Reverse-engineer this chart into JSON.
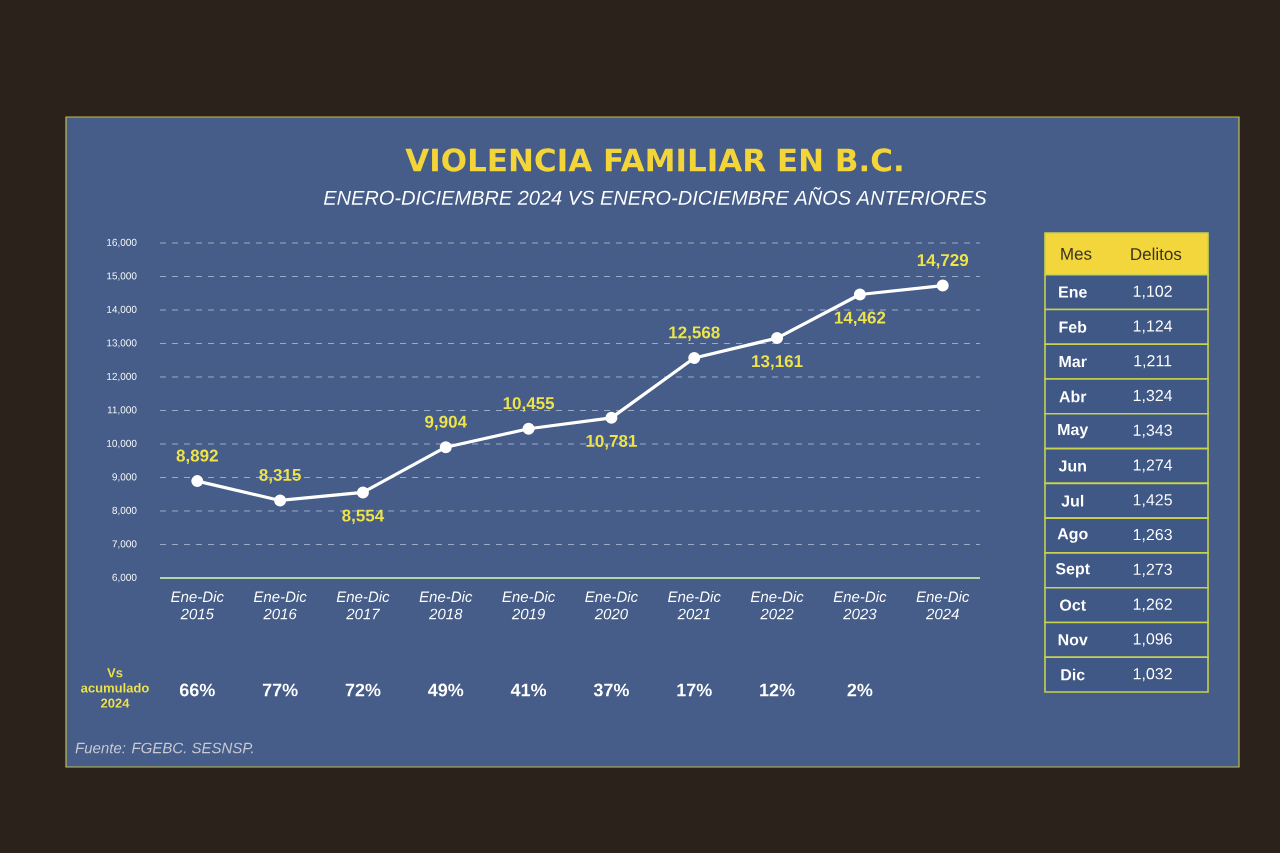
{
  "chart_data": [
    {
      "type": "line",
      "title": "VIOLENCIA FAMILIAR EN B.C.",
      "subtitle": "ENERO-DICIEMBRE 2024 VS ENERO-DICIEMBRE AÑOS ANTERIORES",
      "categories": [
        "Ene-Dic 2015",
        "Ene-Dic 2016",
        "Ene-Dic 2017",
        "Ene-Dic 2018",
        "Ene-Dic 2019",
        "Ene-Dic 2020",
        "Ene-Dic 2021",
        "Ene-Dic 2022",
        "Ene-Dic 2023",
        "Ene-Dic 2024"
      ],
      "values": [
        8892,
        8315,
        8554,
        9904,
        10455,
        10781,
        12568,
        13161,
        14462,
        14729
      ],
      "value_labels": [
        "8,892",
        "8,315",
        "8,554",
        "9,904",
        "10,455",
        "10,781",
        "12,568",
        "13,161",
        "14,462",
        "14,729"
      ],
      "color": "#ffffff",
      "marker": "circle",
      "line_style": "solid",
      "grid": "y",
      "ylim": [
        6000,
        16000
      ],
      "yticks": [
        {
          "value": 6000,
          "label": "6,000"
        },
        {
          "value": 7000,
          "label": "7,000"
        },
        {
          "value": 8000,
          "label": "8,000"
        },
        {
          "value": 9000,
          "label": "9,000"
        },
        {
          "value": 10000,
          "label": "10,000"
        },
        {
          "value": 11000,
          "label": "11,000"
        },
        {
          "value": 12000,
          "label": "12,000"
        },
        {
          "value": 13000,
          "label": "13,000"
        },
        {
          "value": 14000,
          "label": "14,000"
        },
        {
          "value": 15000,
          "label": "15,000"
        },
        {
          "value": 16000,
          "label": "16,000"
        }
      ],
      "annotations": [
        "Vs acumulado 2024",
        "66%",
        "77%",
        "72%",
        "49%",
        "41%",
        "37%",
        "17%",
        "12%",
        "2%",
        "Fuente: FGEBC. SESNSP."
      ]
    },
    {
      "type": "other",
      "xlabel": "Mes",
      "ylabel": "Delitos",
      "categories": [
        "Ene",
        "Feb",
        "Mar",
        "Abr",
        "May",
        "Jun",
        "Jul",
        "Ago",
        "Sept",
        "Oct",
        "Nov",
        "Dic"
      ],
      "value_labels": [
        "1,102",
        "1,124",
        "1,211",
        "1,324",
        "1,343",
        "1,274",
        "1,425",
        "1,263",
        "1,273",
        "1,262",
        "1,096",
        "1,032"
      ]
    }
  ]
}
